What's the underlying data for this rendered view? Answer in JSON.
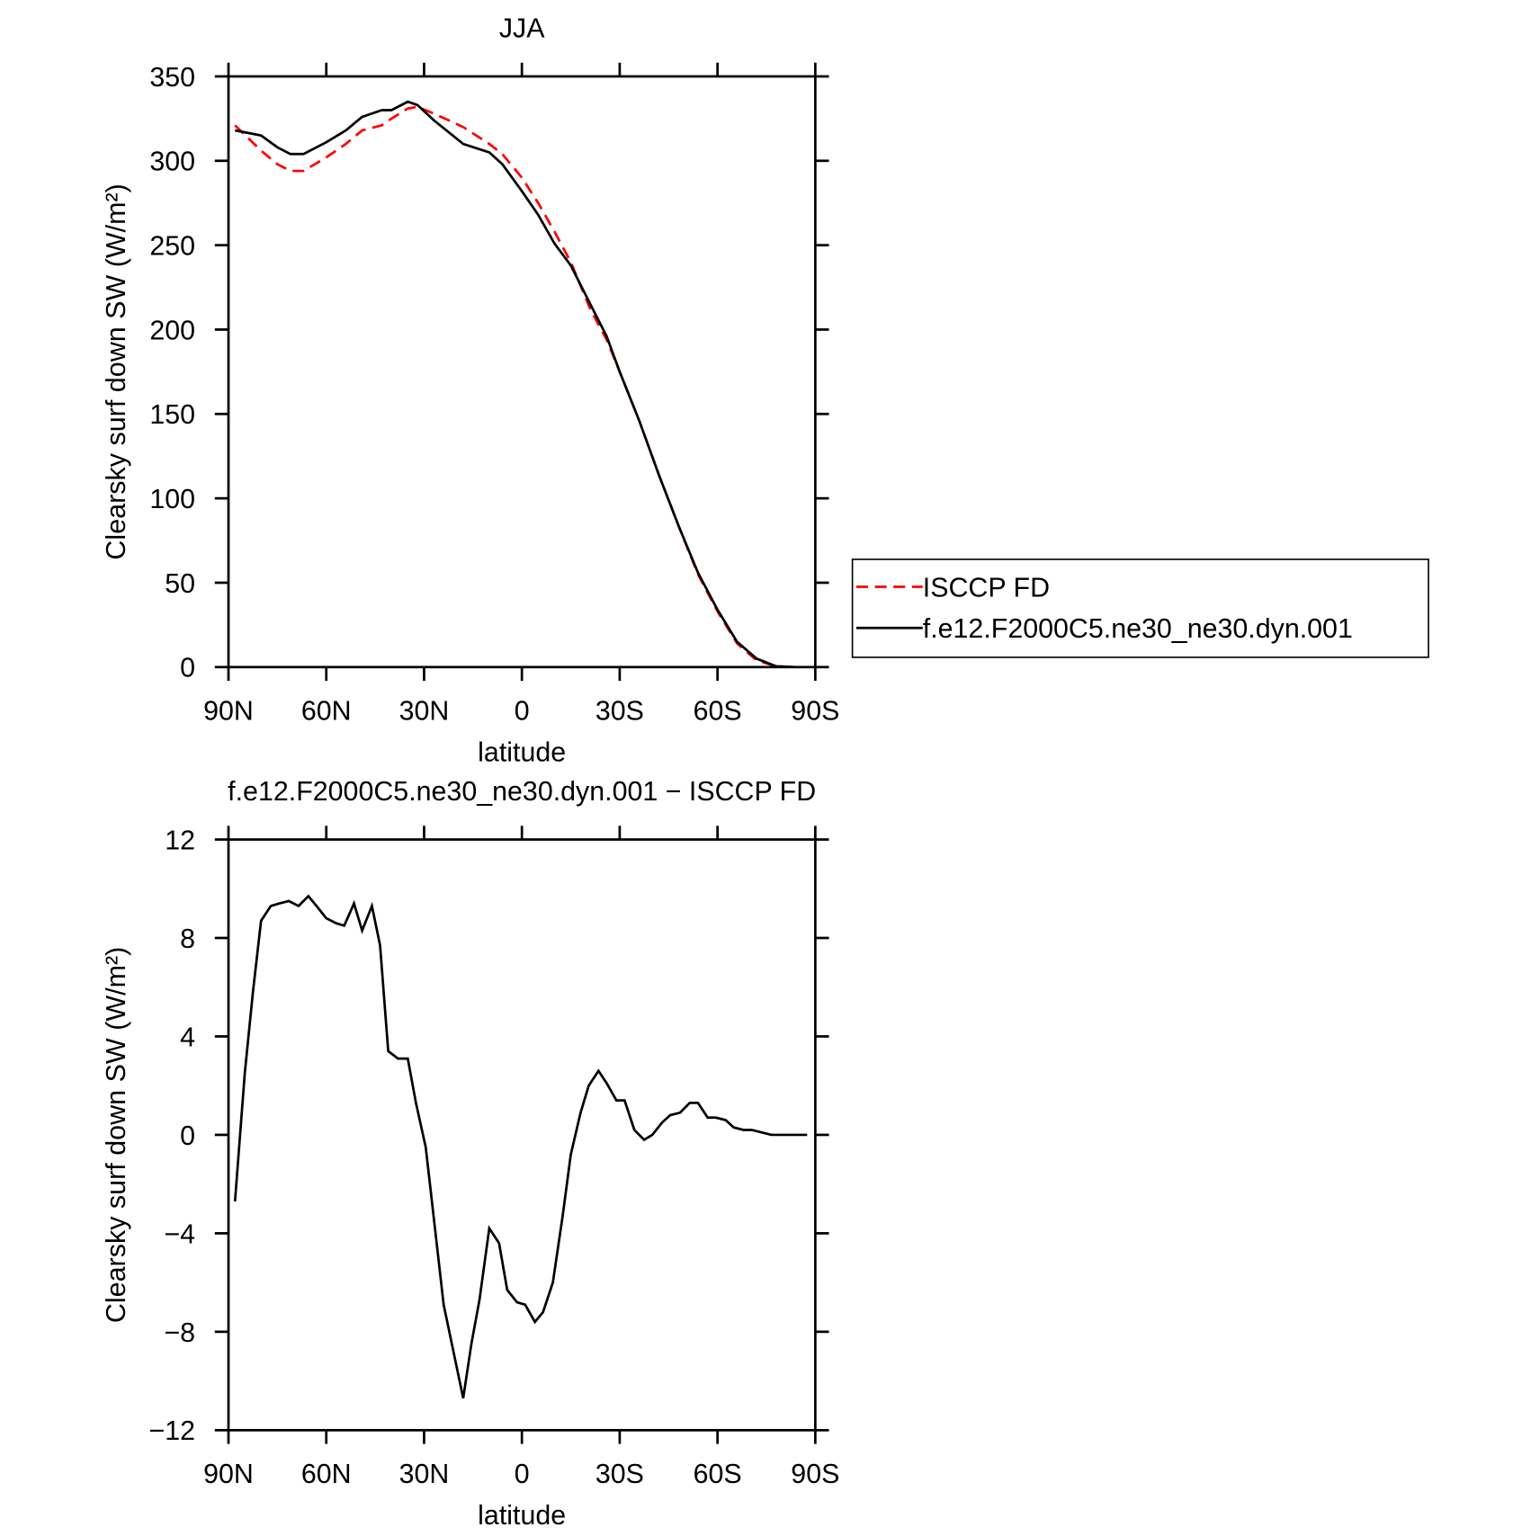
{
  "chart_data": [
    {
      "type": "line",
      "title": "JJA",
      "xlabel": "latitude",
      "ylabel": "Clearsky surf down SW (W/m²)",
      "x": [
        88,
        80,
        75,
        71,
        67,
        60,
        54,
        49,
        43,
        40,
        35,
        32,
        27,
        18,
        10,
        6,
        0,
        -5,
        -10,
        -15,
        -21,
        -26,
        -30,
        -36,
        -42,
        -48,
        -54,
        -60,
        -66,
        -72,
        -78,
        -84
      ],
      "series": [
        {
          "name": "ISCCP FD",
          "color": "#ff0000",
          "line_style": "dashed",
          "values": [
            321,
            306,
            298,
            294,
            294,
            302,
            310,
            318,
            321,
            325,
            331,
            332,
            328,
            320,
            310,
            304,
            290,
            275,
            258,
            240,
            212,
            194,
            175,
            146,
            114,
            84,
            55,
            33,
            14,
            4,
            0.5,
            0
          ]
        },
        {
          "name": "f.e12.F2000C5.ne30_ne30.dyn.001",
          "color": "#000000",
          "line_style": "solid",
          "values": [
            318,
            315,
            308,
            304,
            304,
            311,
            318,
            326,
            330,
            330,
            335,
            333,
            324,
            310,
            305,
            298,
            282,
            268,
            251,
            238,
            215,
            196,
            175,
            146,
            114,
            84,
            56,
            34,
            15,
            5,
            0.5,
            0
          ]
        }
      ],
      "xlim": [
        90,
        -90
      ],
      "xticks": [
        {
          "value": 90,
          "label": "90N"
        },
        {
          "value": 60,
          "label": "60N"
        },
        {
          "value": 30,
          "label": "30N"
        },
        0,
        {
          "value": -30,
          "label": "30S"
        },
        {
          "value": -60,
          "label": "60S"
        },
        {
          "value": -90,
          "label": "90S"
        }
      ],
      "ylim": [
        0,
        350
      ],
      "yticks": [
        0,
        50,
        100,
        150,
        200,
        250,
        300,
        350
      ],
      "legend": "outside-right"
    },
    {
      "type": "line",
      "title": "f.e12.F2000C5.ne30_ne30.dyn.001 − ISCCP FD",
      "xlabel": "latitude",
      "ylabel": "Clearsky surf down SW (W/m²)",
      "x": [
        88,
        85,
        82.5,
        80,
        77,
        74.5,
        71.5,
        68.5,
        65.5,
        63,
        60,
        57,
        54.5,
        51.5,
        49,
        46,
        43.5,
        41,
        38,
        35,
        32.5,
        29.5,
        27,
        24,
        21,
        18,
        15.5,
        13,
        10,
        7,
        4.5,
        1.5,
        -1,
        -4,
        -6.5,
        -9.5,
        -12.5,
        -15,
        -18,
        -20.5,
        -23.5,
        -26,
        -29,
        -31.5,
        -34.5,
        -37.5,
        -40,
        -43,
        -45.5,
        -48.5,
        -51.5,
        -54,
        -57,
        -59.5,
        -62.5,
        -65,
        -68,
        -70.5,
        -73.5,
        -76.5,
        -79,
        -82,
        -84.5,
        -87.5
      ],
      "series": [
        {
          "name": "f.e12.F2000C5.ne30_ne30.dyn.001 − ISCCP FD",
          "color": "#000000",
          "line_style": "solid",
          "values": [
            -2.7,
            2.5,
            5.8,
            8.7,
            9.3,
            9.4,
            9.5,
            9.3,
            9.7,
            9.3,
            8.8,
            8.6,
            8.5,
            9.4,
            8.3,
            9.3,
            7.7,
            3.4,
            3.1,
            3.1,
            1.3,
            -0.5,
            -3.4,
            -6.9,
            -8.8,
            -10.7,
            -8.5,
            -6.7,
            -3.8,
            -4.4,
            -6.3,
            -6.8,
            -6.9,
            -7.6,
            -7.2,
            -6.0,
            -3.3,
            -0.8,
            0.9,
            2.0,
            2.6,
            2.1,
            1.4,
            1.4,
            0.2,
            -0.2,
            0,
            0.5,
            0.8,
            0.9,
            1.3,
            1.3,
            0.7,
            0.7,
            0.6,
            0.3,
            0.2,
            0.2,
            0.1,
            0,
            0,
            0,
            0,
            0
          ]
        }
      ],
      "xlim": [
        90,
        -90
      ],
      "xticks": [
        {
          "value": 90,
          "label": "90N"
        },
        {
          "value": 60,
          "label": "60N"
        },
        {
          "value": 30,
          "label": "30N"
        },
        0,
        {
          "value": -30,
          "label": "30S"
        },
        {
          "value": -60,
          "label": "60S"
        },
        {
          "value": -90,
          "label": "90S"
        }
      ],
      "ylim": [
        -12,
        12
      ],
      "yticks": [
        {
          "value": -12,
          "label": "−12"
        },
        {
          "value": -8,
          "label": "−8"
        },
        {
          "value": -4,
          "label": "−4"
        },
        0,
        4,
        8,
        12
      ]
    }
  ]
}
